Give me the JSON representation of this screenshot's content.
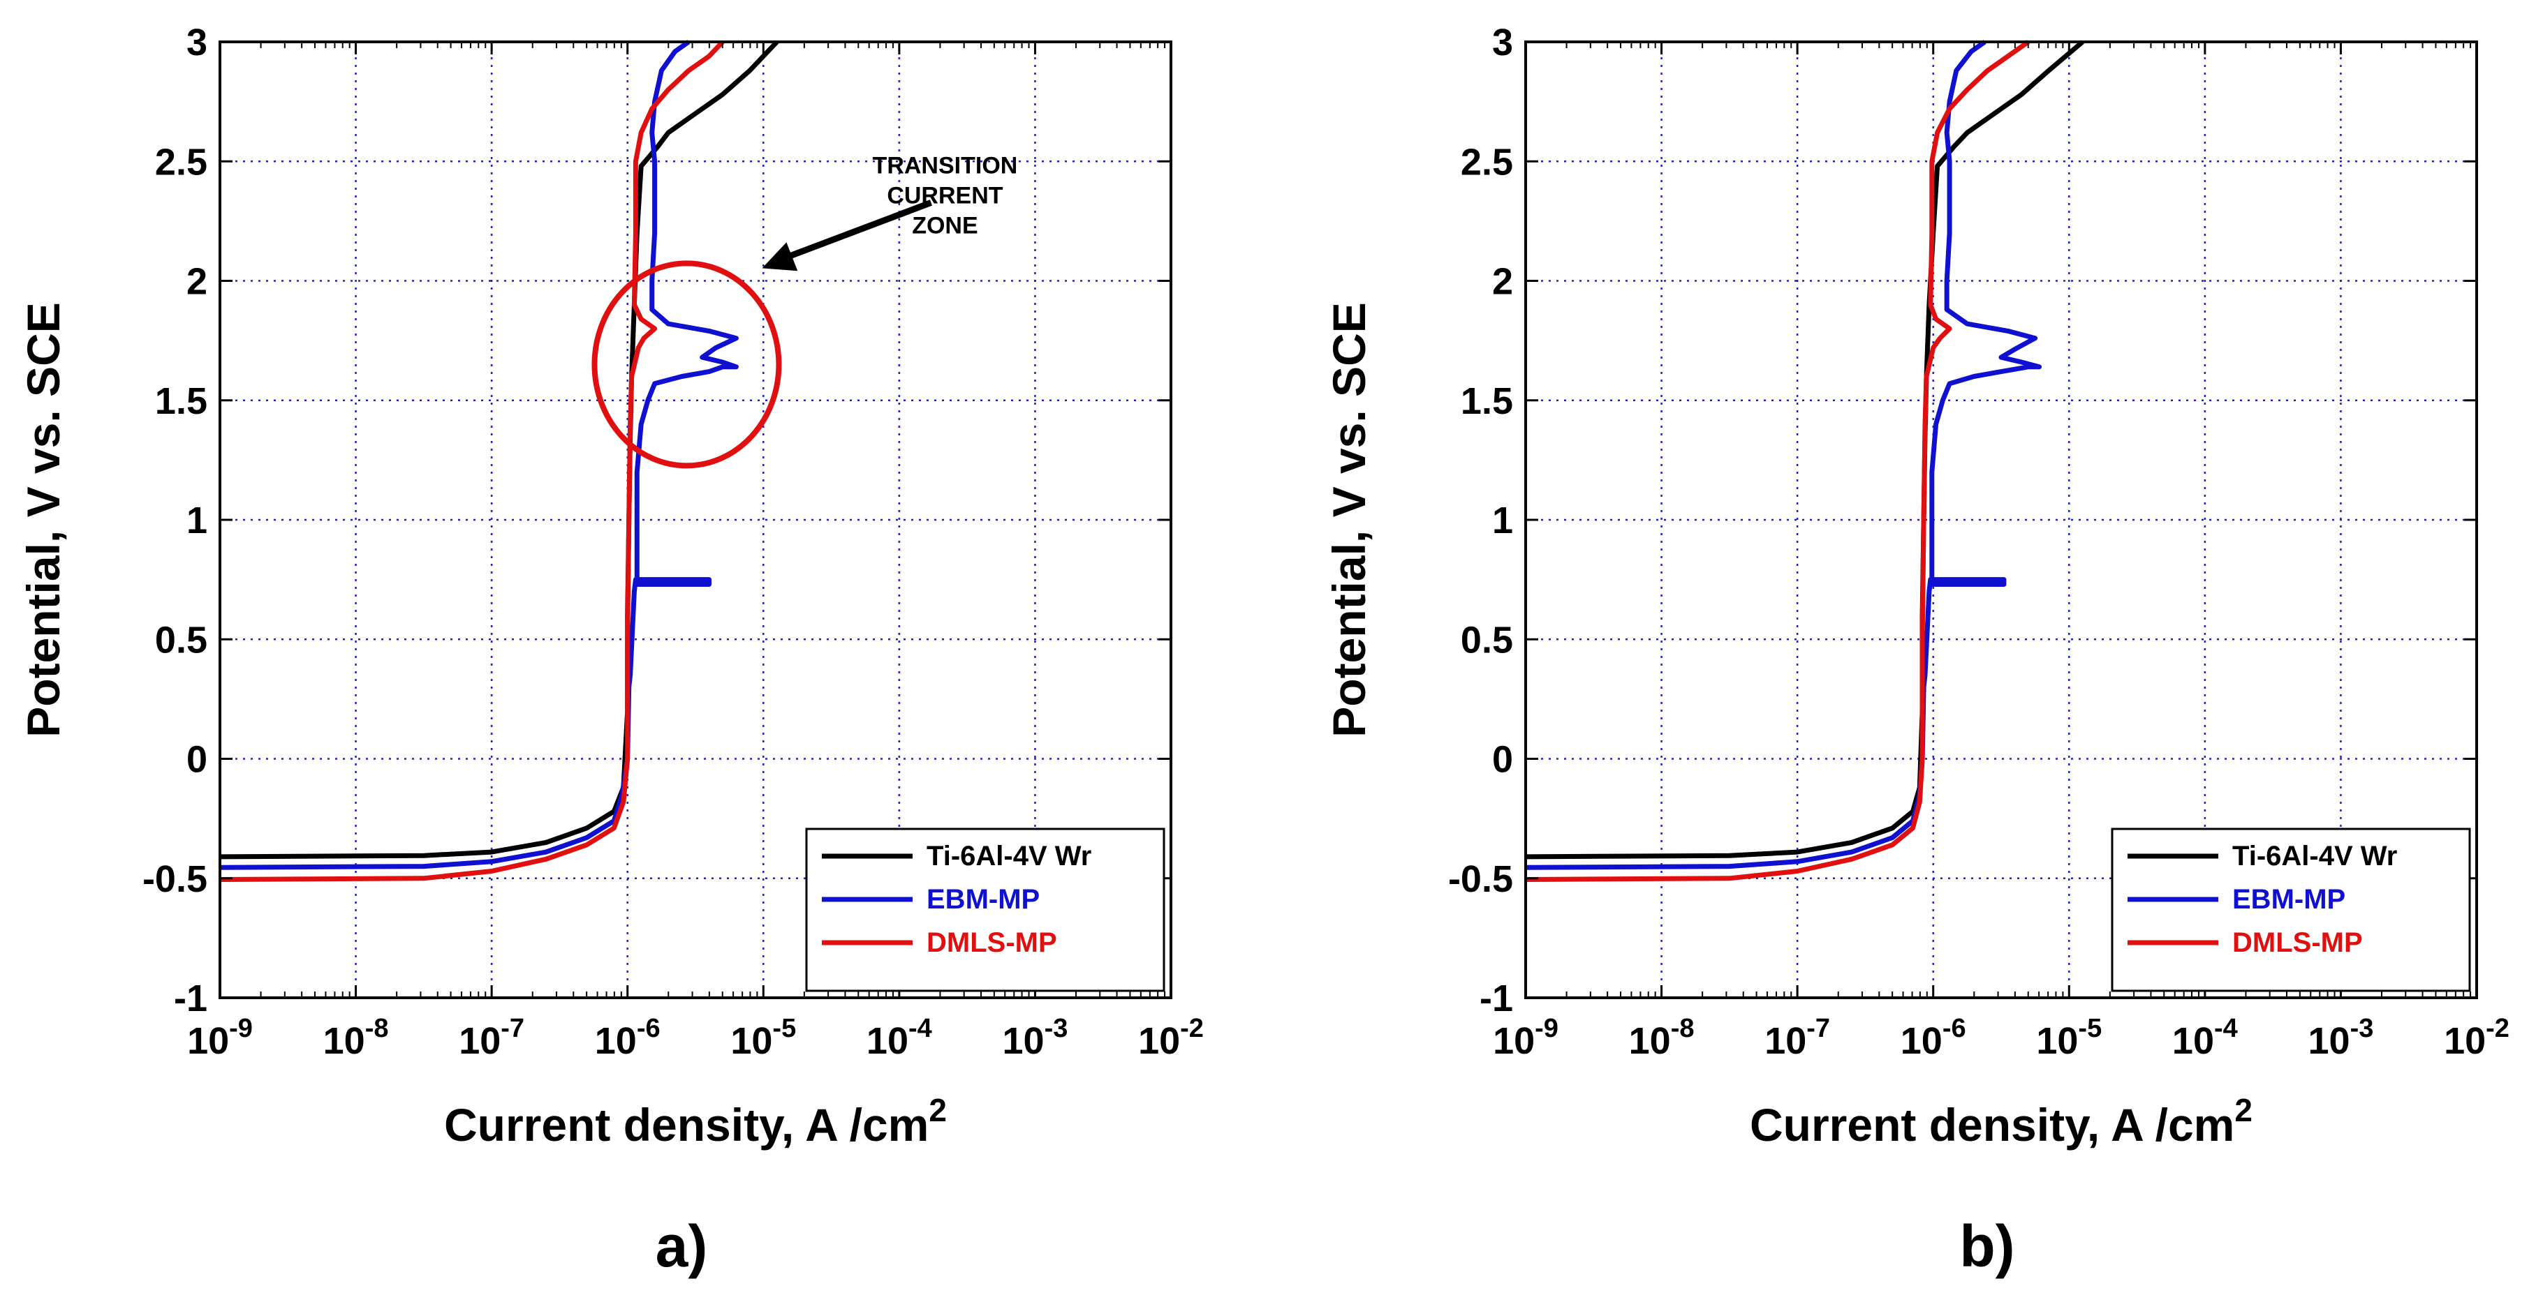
{
  "chart_data": [
    {
      "type": "line",
      "panel_label": "a)",
      "xscale": "log",
      "xlim_exp": [
        -9,
        -2
      ],
      "ylim": [
        -1,
        3
      ],
      "x_ticks": [
        {
          "base": "10",
          "exp": "-9"
        },
        {
          "base": "10",
          "exp": "-8"
        },
        {
          "base": "10",
          "exp": "-7"
        },
        {
          "base": "10",
          "exp": "-6"
        },
        {
          "base": "10",
          "exp": "-5"
        },
        {
          "base": "10",
          "exp": "-4"
        },
        {
          "base": "10",
          "exp": "-3"
        },
        {
          "base": "10",
          "exp": "-2"
        }
      ],
      "y_ticks": [
        "3",
        "2.5",
        "2",
        "1.5",
        "1",
        "0.5",
        "0",
        "-0.5",
        "-1"
      ],
      "xlabel": {
        "main": "Current density, A /cm",
        "sup": "2"
      },
      "ylabel": "Potential, V vs. SCE",
      "grid": true,
      "legend_position": "bottom-right",
      "annotation": {
        "lines": [
          "TRANSITION",
          "CURRENT",
          "ZONE"
        ],
        "target_log_x": -5.95,
        "target_y": 1.65
      },
      "series": [
        {
          "name": "Ti-6Al-4V Wr",
          "color": "#000000",
          "points": [
            [
              -9,
              -0.41
            ],
            [
              -7.5,
              -0.405
            ],
            [
              -7,
              -0.39
            ],
            [
              -6.6,
              -0.35
            ],
            [
              -6.3,
              -0.29
            ],
            [
              -6.1,
              -0.22
            ],
            [
              -6.03,
              -0.12
            ],
            [
              -6.0,
              0.2
            ],
            [
              -6.0,
              0.6
            ],
            [
              -5.99,
              1.0
            ],
            [
              -5.98,
              1.35
            ],
            [
              -5.97,
              1.6
            ],
            [
              -5.95,
              1.9
            ],
            [
              -5.93,
              2.2
            ],
            [
              -5.9,
              2.48
            ],
            [
              -5.78,
              2.56
            ],
            [
              -5.7,
              2.62
            ],
            [
              -5.5,
              2.7
            ],
            [
              -5.3,
              2.78
            ],
            [
              -5.1,
              2.88
            ],
            [
              -4.9,
              3.0
            ]
          ]
        },
        {
          "name": "EBM-MP",
          "color": "#1010d0",
          "points": [
            [
              -9,
              -0.455
            ],
            [
              -7.5,
              -0.45
            ],
            [
              -7,
              -0.43
            ],
            [
              -6.6,
              -0.39
            ],
            [
              -6.3,
              -0.33
            ],
            [
              -6.1,
              -0.26
            ],
            [
              -6.04,
              -0.15
            ],
            [
              -6.0,
              0.0
            ],
            [
              -5.99,
              0.3
            ],
            [
              -5.98,
              0.35
            ],
            [
              -5.95,
              0.7
            ],
            [
              -5.94,
              0.75
            ],
            [
              -5.4,
              0.75
            ],
            [
              -5.4,
              0.73
            ],
            [
              -5.93,
              0.73
            ],
            [
              -5.93,
              1.2
            ],
            [
              -5.9,
              1.4
            ],
            [
              -5.85,
              1.5
            ],
            [
              -5.8,
              1.57
            ],
            [
              -5.6,
              1.6
            ],
            [
              -5.4,
              1.62
            ],
            [
              -5.3,
              1.64
            ],
            [
              -5.2,
              1.64
            ],
            [
              -5.3,
              1.66
            ],
            [
              -5.45,
              1.68
            ],
            [
              -5.35,
              1.72
            ],
            [
              -5.2,
              1.76
            ],
            [
              -5.4,
              1.79
            ],
            [
              -5.7,
              1.82
            ],
            [
              -5.82,
              1.88
            ],
            [
              -5.82,
              2.0
            ],
            [
              -5.8,
              2.2
            ],
            [
              -5.8,
              2.5
            ],
            [
              -5.82,
              2.62
            ],
            [
              -5.8,
              2.75
            ],
            [
              -5.75,
              2.88
            ],
            [
              -5.65,
              2.96
            ],
            [
              -5.55,
              3.0
            ]
          ]
        },
        {
          "name": "DMLS-MP",
          "color": "#e01010",
          "points": [
            [
              -9,
              -0.505
            ],
            [
              -7.5,
              -0.5
            ],
            [
              -7,
              -0.47
            ],
            [
              -6.6,
              -0.42
            ],
            [
              -6.3,
              -0.36
            ],
            [
              -6.1,
              -0.29
            ],
            [
              -6.03,
              -0.18
            ],
            [
              -6.0,
              0.0
            ],
            [
              -6.0,
              0.5
            ],
            [
              -5.99,
              1.0
            ],
            [
              -5.98,
              1.4
            ],
            [
              -5.97,
              1.6
            ],
            [
              -5.92,
              1.72
            ],
            [
              -5.88,
              1.76
            ],
            [
              -5.8,
              1.8
            ],
            [
              -5.9,
              1.84
            ],
            [
              -5.95,
              1.9
            ],
            [
              -5.94,
              2.2
            ],
            [
              -5.94,
              2.5
            ],
            [
              -5.9,
              2.62
            ],
            [
              -5.82,
              2.72
            ],
            [
              -5.7,
              2.8
            ],
            [
              -5.55,
              2.88
            ],
            [
              -5.4,
              2.94
            ],
            [
              -5.3,
              3.0
            ]
          ]
        }
      ]
    },
    {
      "type": "line",
      "panel_label": "b)",
      "xscale": "log",
      "xlim_exp": [
        -9,
        -2
      ],
      "ylim": [
        -1,
        3
      ],
      "x_ticks": [
        {
          "base": "10",
          "exp": "-9"
        },
        {
          "base": "10",
          "exp": "-8"
        },
        {
          "base": "10",
          "exp": "-7"
        },
        {
          "base": "10",
          "exp": "-6"
        },
        {
          "base": "10",
          "exp": "-5"
        },
        {
          "base": "10",
          "exp": "-4"
        },
        {
          "base": "10",
          "exp": "-3"
        },
        {
          "base": "10",
          "exp": "-2"
        }
      ],
      "y_ticks": [
        "3",
        "2.5",
        "2",
        "1.5",
        "1",
        "0.5",
        "0",
        "-0.5",
        "-1"
      ],
      "xlabel": {
        "main": "Current density, A /cm",
        "sup": "2"
      },
      "ylabel": "Potential, V vs. SCE",
      "grid": true,
      "legend_position": "bottom-right",
      "series": [
        {
          "name": "Ti-6Al-4V Wr",
          "color": "#000000",
          "points": [
            [
              -9,
              -0.41
            ],
            [
              -7.5,
              -0.405
            ],
            [
              -7,
              -0.39
            ],
            [
              -6.6,
              -0.35
            ],
            [
              -6.3,
              -0.29
            ],
            [
              -6.15,
              -0.22
            ],
            [
              -6.1,
              -0.12
            ],
            [
              -6.08,
              0.2
            ],
            [
              -6.08,
              0.6
            ],
            [
              -6.07,
              1.0
            ],
            [
              -6.06,
              1.35
            ],
            [
              -6.05,
              1.6
            ],
            [
              -6.03,
              1.9
            ],
            [
              -6.0,
              2.2
            ],
            [
              -5.97,
              2.48
            ],
            [
              -5.85,
              2.56
            ],
            [
              -5.75,
              2.62
            ],
            [
              -5.55,
              2.7
            ],
            [
              -5.35,
              2.78
            ],
            [
              -5.15,
              2.88
            ],
            [
              -4.9,
              3.0
            ]
          ]
        },
        {
          "name": "EBM-MP",
          "color": "#1010d0",
          "points": [
            [
              -9,
              -0.455
            ],
            [
              -7.5,
              -0.45
            ],
            [
              -7,
              -0.43
            ],
            [
              -6.6,
              -0.39
            ],
            [
              -6.3,
              -0.33
            ],
            [
              -6.15,
              -0.26
            ],
            [
              -6.1,
              -0.15
            ],
            [
              -6.08,
              0.0
            ],
            [
              -6.07,
              0.3
            ],
            [
              -6.06,
              0.35
            ],
            [
              -6.03,
              0.7
            ],
            [
              -6.02,
              0.75
            ],
            [
              -5.48,
              0.75
            ],
            [
              -5.48,
              0.73
            ],
            [
              -6.01,
              0.73
            ],
            [
              -6.01,
              1.2
            ],
            [
              -5.98,
              1.4
            ],
            [
              -5.93,
              1.5
            ],
            [
              -5.88,
              1.57
            ],
            [
              -5.7,
              1.6
            ],
            [
              -5.5,
              1.62
            ],
            [
              -5.3,
              1.64
            ],
            [
              -5.22,
              1.64
            ],
            [
              -5.35,
              1.66
            ],
            [
              -5.5,
              1.68
            ],
            [
              -5.38,
              1.72
            ],
            [
              -5.25,
              1.76
            ],
            [
              -5.45,
              1.79
            ],
            [
              -5.75,
              1.82
            ],
            [
              -5.9,
              1.88
            ],
            [
              -5.9,
              2.0
            ],
            [
              -5.88,
              2.2
            ],
            [
              -5.88,
              2.5
            ],
            [
              -5.9,
              2.62
            ],
            [
              -5.88,
              2.75
            ],
            [
              -5.83,
              2.88
            ],
            [
              -5.72,
              2.96
            ],
            [
              -5.62,
              3.0
            ]
          ]
        },
        {
          "name": "DMLS-MP",
          "color": "#e01010",
          "points": [
            [
              -9,
              -0.505
            ],
            [
              -7.5,
              -0.5
            ],
            [
              -7,
              -0.47
            ],
            [
              -6.6,
              -0.42
            ],
            [
              -6.3,
              -0.36
            ],
            [
              -6.15,
              -0.29
            ],
            [
              -6.1,
              -0.18
            ],
            [
              -6.08,
              0.0
            ],
            [
              -6.08,
              0.5
            ],
            [
              -6.07,
              1.0
            ],
            [
              -6.06,
              1.4
            ],
            [
              -6.05,
              1.6
            ],
            [
              -6.0,
              1.72
            ],
            [
              -5.95,
              1.76
            ],
            [
              -5.88,
              1.8
            ],
            [
              -5.98,
              1.84
            ],
            [
              -6.02,
              1.9
            ],
            [
              -6.01,
              2.2
            ],
            [
              -6.01,
              2.5
            ],
            [
              -5.97,
              2.62
            ],
            [
              -5.88,
              2.72
            ],
            [
              -5.75,
              2.8
            ],
            [
              -5.6,
              2.88
            ],
            [
              -5.45,
              2.94
            ],
            [
              -5.3,
              3.0
            ]
          ]
        }
      ]
    }
  ]
}
